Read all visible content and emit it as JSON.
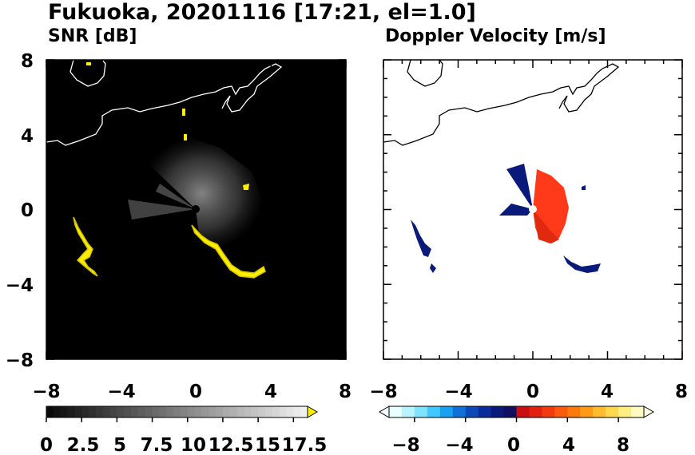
{
  "title": "Fukuoka, 20201116 [17:21, el=1.0]",
  "chart_data": [
    {
      "type": "heatmap",
      "title": "SNR [dB]",
      "xlim": [
        -8,
        8
      ],
      "ylim": [
        -8,
        8
      ],
      "x_ticks": [
        "−8",
        "−4",
        "0",
        "4",
        "8"
      ],
      "y_ticks": [
        "8",
        "4",
        "0",
        "−4",
        "−8"
      ],
      "background": "#000000",
      "colorbar": {
        "range": [
          0,
          18.5
        ],
        "tick_labels": [
          "0",
          "2.5",
          "5",
          "7.5",
          "10",
          "12.5",
          "15",
          "17.5"
        ],
        "tick_values": [
          0,
          2.5,
          5,
          7.5,
          10,
          12.5,
          15,
          17.5
        ],
        "over_color": "#ffee00"
      }
    },
    {
      "type": "heatmap",
      "title": "Doppler Velocity [m/s]",
      "xlim": [
        -8,
        8
      ],
      "ylim": [
        -8,
        8
      ],
      "x_ticks": [
        "−8",
        "−4",
        "0",
        "4",
        "8"
      ],
      "y_ticks": [],
      "background": "#ffffff",
      "colorbar": {
        "range": [
          -10,
          10
        ],
        "tick_labels": [
          "−8",
          "−4",
          "0",
          "4",
          "8"
        ],
        "tick_values": [
          -8,
          -4,
          0,
          4,
          8
        ],
        "negative_color": "#0a1a7a",
        "positive_color": "#ff3a1a"
      }
    }
  ]
}
